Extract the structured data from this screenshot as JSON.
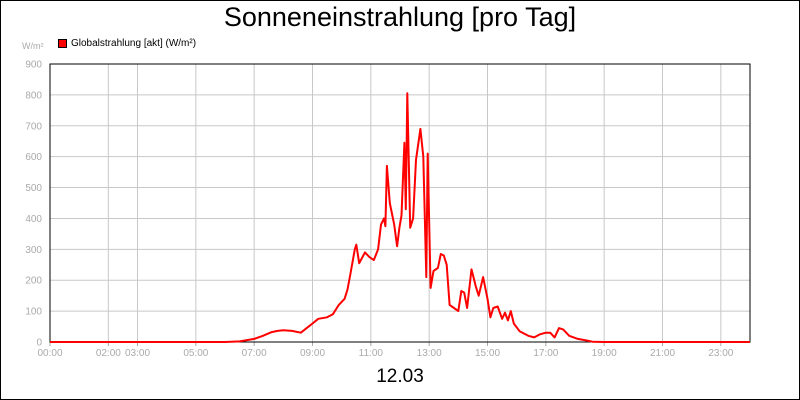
{
  "chart_data": {
    "type": "line",
    "title": "Sonneneinstrahlung [pro Tag]",
    "y_unit": "W/m²",
    "date_label": "12.03",
    "ylim": [
      0,
      900
    ],
    "y_ticks": [
      "0",
      "100",
      "200",
      "300",
      "400",
      "500",
      "600",
      "700",
      "800",
      "900"
    ],
    "x_range_hours": [
      0,
      24
    ],
    "x_ticks": [
      "00:00",
      "02:00",
      "03:00",
      "05:00",
      "07:00",
      "09:00",
      "11:00",
      "13:00",
      "15:00",
      "17:00",
      "19:00",
      "21:00",
      "23:00"
    ],
    "grid": true,
    "legend_position": "top-left",
    "series": [
      {
        "name": "Globalstrahlung [akt] (W/m²)",
        "color": "#ff0000",
        "points": [
          [
            0,
            0
          ],
          [
            6.0,
            0
          ],
          [
            6.5,
            2
          ],
          [
            7.0,
            10
          ],
          [
            7.3,
            20
          ],
          [
            7.6,
            32
          ],
          [
            7.8,
            36
          ],
          [
            8.0,
            38
          ],
          [
            8.3,
            36
          ],
          [
            8.6,
            30
          ],
          [
            8.8,
            45
          ],
          [
            9.0,
            60
          ],
          [
            9.2,
            75
          ],
          [
            9.5,
            80
          ],
          [
            9.7,
            90
          ],
          [
            9.9,
            120
          ],
          [
            10.1,
            140
          ],
          [
            10.2,
            170
          ],
          [
            10.3,
            220
          ],
          [
            10.45,
            300
          ],
          [
            10.5,
            315
          ],
          [
            10.6,
            255
          ],
          [
            10.8,
            290
          ],
          [
            10.95,
            275
          ],
          [
            11.1,
            265
          ],
          [
            11.25,
            300
          ],
          [
            11.35,
            380
          ],
          [
            11.45,
            400
          ],
          [
            11.5,
            375
          ],
          [
            11.55,
            570
          ],
          [
            11.65,
            450
          ],
          [
            11.8,
            380
          ],
          [
            11.9,
            310
          ],
          [
            11.98,
            370
          ],
          [
            12.05,
            410
          ],
          [
            12.15,
            645
          ],
          [
            12.2,
            430
          ],
          [
            12.25,
            805
          ],
          [
            12.35,
            370
          ],
          [
            12.45,
            400
          ],
          [
            12.55,
            590
          ],
          [
            12.7,
            690
          ],
          [
            12.8,
            600
          ],
          [
            12.9,
            210
          ],
          [
            12.95,
            610
          ],
          [
            13.05,
            175
          ],
          [
            13.15,
            230
          ],
          [
            13.3,
            240
          ],
          [
            13.4,
            285
          ],
          [
            13.5,
            280
          ],
          [
            13.6,
            250
          ],
          [
            13.7,
            120
          ],
          [
            13.85,
            110
          ],
          [
            14.0,
            100
          ],
          [
            14.1,
            165
          ],
          [
            14.2,
            160
          ],
          [
            14.3,
            110
          ],
          [
            14.45,
            235
          ],
          [
            14.6,
            180
          ],
          [
            14.7,
            150
          ],
          [
            14.85,
            210
          ],
          [
            15.0,
            140
          ],
          [
            15.1,
            80
          ],
          [
            15.2,
            110
          ],
          [
            15.35,
            115
          ],
          [
            15.5,
            75
          ],
          [
            15.6,
            95
          ],
          [
            15.7,
            70
          ],
          [
            15.8,
            100
          ],
          [
            15.9,
            60
          ],
          [
            16.1,
            35
          ],
          [
            16.4,
            20
          ],
          [
            16.6,
            15
          ],
          [
            16.8,
            25
          ],
          [
            17.0,
            30
          ],
          [
            17.15,
            30
          ],
          [
            17.3,
            15
          ],
          [
            17.45,
            45
          ],
          [
            17.6,
            40
          ],
          [
            17.8,
            20
          ],
          [
            18.1,
            10
          ],
          [
            18.4,
            5
          ],
          [
            18.6,
            1
          ],
          [
            19.0,
            0
          ],
          [
            24,
            0
          ]
        ]
      }
    ]
  }
}
